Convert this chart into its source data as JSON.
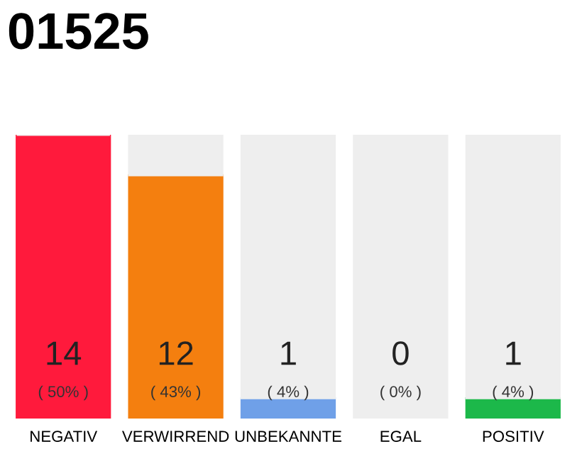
{
  "chart_data": {
    "type": "bar",
    "title": "01525",
    "stacked": true,
    "categories": [
      "NEGATIV",
      "VERWIRREND",
      "UNBEKANNTE",
      "EGAL",
      "POSITIV"
    ],
    "series": [
      {
        "colors": [
          "#ff1a3c",
          "#f47f0f",
          "#6fa0e8",
          "#999999",
          "#1cb84a"
        ],
        "values": [
          14,
          12,
          1,
          0,
          1
        ],
        "value_labels": [
          "14\n( 50% )",
          "12\n( 43% )",
          "1\n( 4% )",
          "0\n( 0% )",
          "1\n( 4% )"
        ]
      },
      {
        "color": "#eeeeee",
        "values": [
          0,
          2,
          13,
          14,
          13
        ]
      }
    ]
  }
}
